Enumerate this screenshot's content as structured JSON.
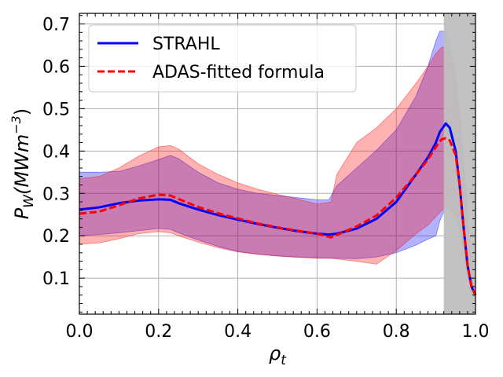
{
  "chart_data": {
    "type": "line",
    "xlabel": "ρ",
    "xlabel_sub": "t",
    "ylabel": "P",
    "ylabel_sub": "W",
    "ylabel_units": "(MWm",
    "ylabel_units_sup": "−3",
    "ylabel_units_close": ")",
    "xlim": [
      0.0,
      1.0
    ],
    "ylim": [
      0.015,
      0.725
    ],
    "xticks": [
      0.0,
      0.2,
      0.4,
      0.6,
      0.8,
      1.0
    ],
    "xtick_labels": [
      "0.0",
      "0.2",
      "0.4",
      "0.6",
      "0.8",
      "1.0"
    ],
    "yticks": [
      0.1,
      0.2,
      0.3,
      0.4,
      0.5,
      0.6,
      0.7
    ],
    "ytick_labels": [
      "0.1",
      "0.2",
      "0.3",
      "0.4",
      "0.5",
      "0.6",
      "0.7"
    ],
    "grid": true,
    "legend_position": "top-left",
    "shaded_region": {
      "x_start": 0.92,
      "x_end": 1.0,
      "color": "#bfbfbf"
    },
    "series": [
      {
        "name": "STRAHL",
        "color": "#0000ff",
        "style": "solid",
        "x": [
          0.0,
          0.05,
          0.1,
          0.15,
          0.2,
          0.23,
          0.25,
          0.3,
          0.35,
          0.4,
          0.45,
          0.5,
          0.55,
          0.6,
          0.63,
          0.65,
          0.7,
          0.75,
          0.8,
          0.85,
          0.88,
          0.9,
          0.91,
          0.925,
          0.935,
          0.95,
          0.96,
          0.97,
          0.98,
          0.99,
          1.0
        ],
        "y": [
          0.262,
          0.267,
          0.277,
          0.283,
          0.286,
          0.285,
          0.277,
          0.262,
          0.249,
          0.238,
          0.228,
          0.219,
          0.211,
          0.205,
          0.203,
          0.205,
          0.217,
          0.24,
          0.28,
          0.345,
          0.385,
          0.42,
          0.445,
          0.465,
          0.455,
          0.4,
          0.32,
          0.22,
          0.13,
          0.08,
          0.06
        ],
        "lower": [
          0.2,
          0.203,
          0.207,
          0.212,
          0.217,
          0.215,
          0.207,
          0.19,
          0.175,
          0.163,
          0.157,
          0.153,
          0.15,
          0.148,
          0.147,
          0.147,
          0.146,
          0.15,
          0.16,
          0.178,
          0.192,
          0.2,
          0.235,
          0.268,
          0.263,
          0.25,
          0.22,
          0.17,
          0.1,
          0.07,
          0.05
        ],
        "upper": [
          0.35,
          0.35,
          0.352,
          0.365,
          0.38,
          0.39,
          0.382,
          0.35,
          0.325,
          0.31,
          0.3,
          0.295,
          0.29,
          0.285,
          0.285,
          0.318,
          0.36,
          0.402,
          0.45,
          0.53,
          0.6,
          0.66,
          0.683,
          0.683,
          0.65,
          0.58,
          0.49,
          0.38,
          0.25,
          0.13,
          0.08
        ]
      },
      {
        "name": "ADAS-fitted formula",
        "color": "#ff0000",
        "style": "dashed",
        "x": [
          0.0,
          0.05,
          0.1,
          0.15,
          0.2,
          0.23,
          0.25,
          0.3,
          0.35,
          0.4,
          0.45,
          0.5,
          0.55,
          0.6,
          0.635,
          0.65,
          0.7,
          0.75,
          0.8,
          0.85,
          0.88,
          0.9,
          0.915,
          0.925,
          0.935,
          0.95,
          0.96,
          0.97,
          0.98,
          0.99,
          1.0
        ],
        "y": [
          0.252,
          0.257,
          0.272,
          0.288,
          0.297,
          0.295,
          0.287,
          0.268,
          0.253,
          0.241,
          0.229,
          0.22,
          0.212,
          0.205,
          0.196,
          0.202,
          0.222,
          0.248,
          0.29,
          0.345,
          0.38,
          0.41,
          0.428,
          0.43,
          0.425,
          0.39,
          0.32,
          0.22,
          0.13,
          0.08,
          0.06
        ],
        "lower": [
          0.18,
          0.183,
          0.193,
          0.205,
          0.21,
          0.207,
          0.2,
          0.185,
          0.172,
          0.162,
          0.156,
          0.152,
          0.149,
          0.147,
          0.147,
          0.145,
          0.14,
          0.133,
          0.165,
          0.205,
          0.225,
          0.245,
          0.26,
          0.265,
          0.26,
          0.245,
          0.215,
          0.165,
          0.1,
          0.07,
          0.05
        ],
        "upper": [
          0.335,
          0.34,
          0.36,
          0.388,
          0.41,
          0.413,
          0.405,
          0.37,
          0.345,
          0.325,
          0.31,
          0.298,
          0.287,
          0.275,
          0.28,
          0.345,
          0.42,
          0.455,
          0.5,
          0.56,
          0.6,
          0.63,
          0.645,
          0.645,
          0.63,
          0.56,
          0.47,
          0.36,
          0.24,
          0.13,
          0.08
        ]
      }
    ]
  }
}
